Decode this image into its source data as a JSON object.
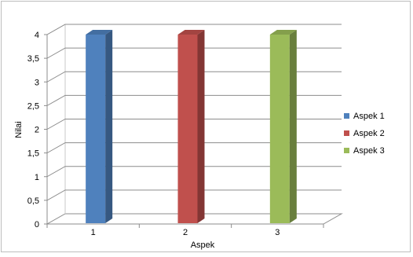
{
  "chart_data": {
    "type": "bar",
    "title": "",
    "xlabel": "Aspek",
    "ylabel": "Nilai",
    "categories": [
      "1",
      "2",
      "3"
    ],
    "series": [
      {
        "name": "Aspek 1",
        "color": "#4F81BD",
        "values": [
          4,
          null,
          null
        ]
      },
      {
        "name": "Aspek 2",
        "color": "#C0504D",
        "values": [
          null,
          4,
          null
        ]
      },
      {
        "name": "Aspek 3",
        "color": "#9BBB59",
        "values": [
          null,
          null,
          4
        ]
      }
    ],
    "ylim": [
      0,
      4
    ],
    "yticks": [
      "0",
      "0,5",
      "1",
      "1,5",
      "2",
      "2,5",
      "3",
      "3,5",
      "4"
    ],
    "grid": true,
    "legend_position": "right",
    "style": "3d-clustered-column"
  }
}
